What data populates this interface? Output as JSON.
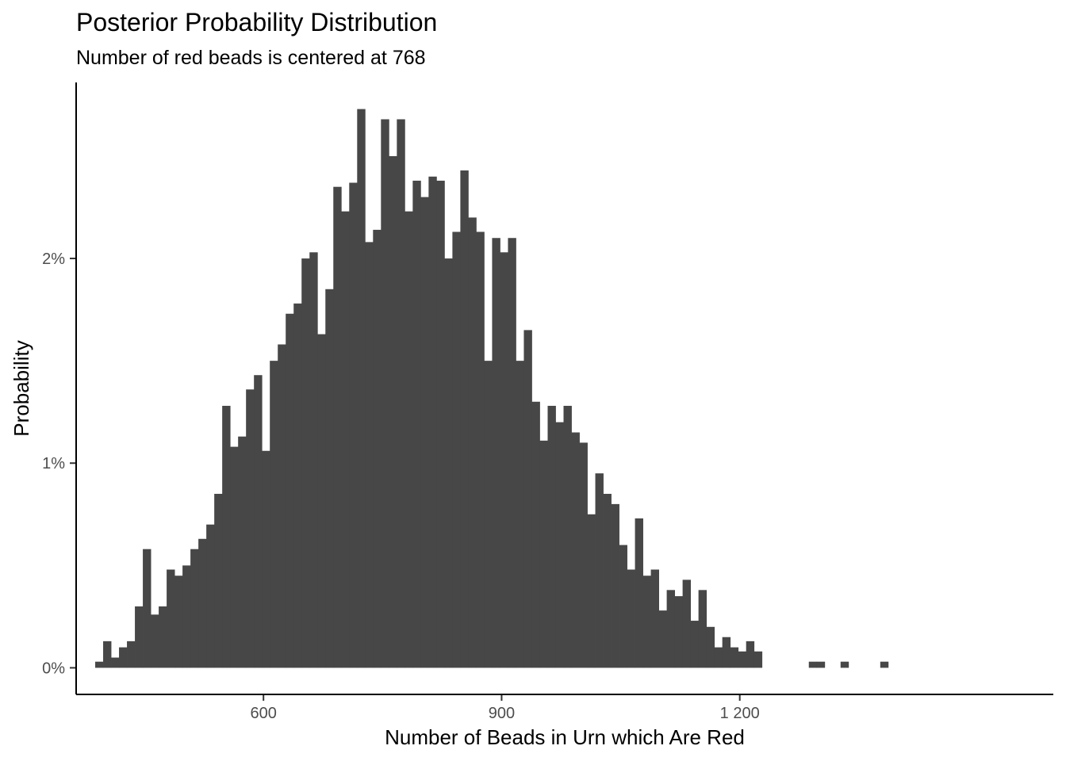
{
  "chart_data": {
    "type": "bar",
    "title": "Posterior Probability Distribution",
    "subtitle": "Number of red beads is centered at 768",
    "xlabel": "Number of Beads in Urn which Are Red",
    "ylabel": "Probability",
    "x_ticks": [
      600,
      900,
      1200
    ],
    "x_tick_labels": [
      "600",
      "900",
      "1 200"
    ],
    "y_ticks": [
      0,
      0.01,
      0.02
    ],
    "y_tick_labels": [
      "0%",
      "1%",
      "2%"
    ],
    "xlim": [
      364,
      1595
    ],
    "ylim": [
      -0.0013,
      0.0286
    ],
    "grid": false,
    "legend": "none",
    "bar_color": "#474747",
    "bin_width": 10,
    "bins": [
      {
        "x": 393,
        "y": 0.0003
      },
      {
        "x": 403,
        "y": 0.0013
      },
      {
        "x": 413,
        "y": 0.0005
      },
      {
        "x": 423,
        "y": 0.001
      },
      {
        "x": 433,
        "y": 0.0013
      },
      {
        "x": 443,
        "y": 0.003
      },
      {
        "x": 453,
        "y": 0.0058
      },
      {
        "x": 463,
        "y": 0.0026
      },
      {
        "x": 473,
        "y": 0.003
      },
      {
        "x": 483,
        "y": 0.0048
      },
      {
        "x": 493,
        "y": 0.0045
      },
      {
        "x": 503,
        "y": 0.005
      },
      {
        "x": 513,
        "y": 0.0058
      },
      {
        "x": 523,
        "y": 0.0063
      },
      {
        "x": 533,
        "y": 0.007
      },
      {
        "x": 543,
        "y": 0.0085
      },
      {
        "x": 553,
        "y": 0.0128
      },
      {
        "x": 563,
        "y": 0.0108
      },
      {
        "x": 573,
        "y": 0.0113
      },
      {
        "x": 583,
        "y": 0.0136
      },
      {
        "x": 593,
        "y": 0.0143
      },
      {
        "x": 603,
        "y": 0.0106
      },
      {
        "x": 613,
        "y": 0.015
      },
      {
        "x": 623,
        "y": 0.0158
      },
      {
        "x": 633,
        "y": 0.0173
      },
      {
        "x": 643,
        "y": 0.0178
      },
      {
        "x": 653,
        "y": 0.02
      },
      {
        "x": 663,
        "y": 0.0203
      },
      {
        "x": 673,
        "y": 0.0163
      },
      {
        "x": 683,
        "y": 0.0185
      },
      {
        "x": 693,
        "y": 0.0235
      },
      {
        "x": 703,
        "y": 0.0223
      },
      {
        "x": 713,
        "y": 0.0237
      },
      {
        "x": 723,
        "y": 0.0273
      },
      {
        "x": 733,
        "y": 0.0208
      },
      {
        "x": 743,
        "y": 0.0214
      },
      {
        "x": 753,
        "y": 0.0268
      },
      {
        "x": 763,
        "y": 0.025
      },
      {
        "x": 773,
        "y": 0.0268
      },
      {
        "x": 783,
        "y": 0.0223
      },
      {
        "x": 793,
        "y": 0.0238
      },
      {
        "x": 803,
        "y": 0.023
      },
      {
        "x": 813,
        "y": 0.024
      },
      {
        "x": 823,
        "y": 0.0238
      },
      {
        "x": 833,
        "y": 0.02
      },
      {
        "x": 843,
        "y": 0.0213
      },
      {
        "x": 853,
        "y": 0.0243
      },
      {
        "x": 863,
        "y": 0.022
      },
      {
        "x": 873,
        "y": 0.0213
      },
      {
        "x": 883,
        "y": 0.015
      },
      {
        "x": 893,
        "y": 0.021
      },
      {
        "x": 903,
        "y": 0.0203
      },
      {
        "x": 913,
        "y": 0.021
      },
      {
        "x": 923,
        "y": 0.015
      },
      {
        "x": 933,
        "y": 0.0165
      },
      {
        "x": 943,
        "y": 0.013
      },
      {
        "x": 953,
        "y": 0.0111
      },
      {
        "x": 963,
        "y": 0.0128
      },
      {
        "x": 973,
        "y": 0.012
      },
      {
        "x": 983,
        "y": 0.0128
      },
      {
        "x": 993,
        "y": 0.0115
      },
      {
        "x": 1003,
        "y": 0.011
      },
      {
        "x": 1013,
        "y": 0.0075
      },
      {
        "x": 1023,
        "y": 0.0095
      },
      {
        "x": 1033,
        "y": 0.0085
      },
      {
        "x": 1043,
        "y": 0.008
      },
      {
        "x": 1053,
        "y": 0.006
      },
      {
        "x": 1063,
        "y": 0.0048
      },
      {
        "x": 1073,
        "y": 0.0073
      },
      {
        "x": 1083,
        "y": 0.0045
      },
      {
        "x": 1093,
        "y": 0.0048
      },
      {
        "x": 1103,
        "y": 0.0028
      },
      {
        "x": 1113,
        "y": 0.0038
      },
      {
        "x": 1123,
        "y": 0.0035
      },
      {
        "x": 1133,
        "y": 0.0043
      },
      {
        "x": 1143,
        "y": 0.0023
      },
      {
        "x": 1153,
        "y": 0.0038
      },
      {
        "x": 1163,
        "y": 0.002
      },
      {
        "x": 1173,
        "y": 0.001
      },
      {
        "x": 1183,
        "y": 0.0015
      },
      {
        "x": 1193,
        "y": 0.001
      },
      {
        "x": 1203,
        "y": 0.0008
      },
      {
        "x": 1213,
        "y": 0.0013
      },
      {
        "x": 1223,
        "y": 0.0008
      },
      {
        "x": 1292,
        "y": 0.0003
      },
      {
        "x": 1302,
        "y": 0.0003
      },
      {
        "x": 1332,
        "y": 0.0003
      },
      {
        "x": 1382,
        "y": 0.0003
      }
    ]
  }
}
